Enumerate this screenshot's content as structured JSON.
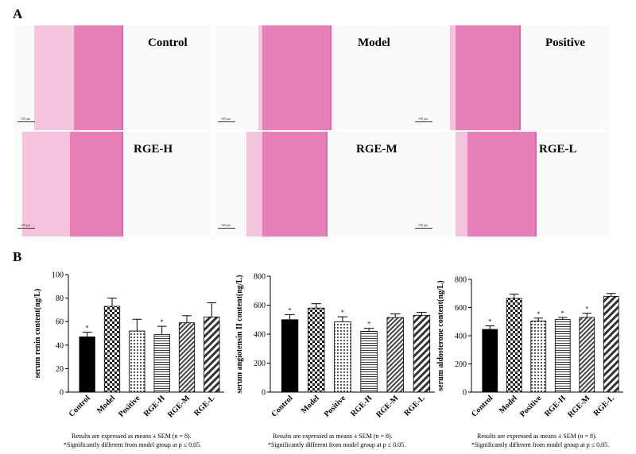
{
  "panel_a": {
    "letter": "A",
    "tiles": [
      {
        "label": "Control",
        "scale": "100 μm"
      },
      {
        "label": "Model",
        "scale": "100 μm"
      },
      {
        "label": "Positive",
        "scale": "100 μm"
      },
      {
        "label": "RGE-H",
        "scale": "100 μm"
      },
      {
        "label": "RGE-M",
        "scale": "100 μm"
      },
      {
        "label": "RGE-L",
        "scale": "100 μm"
      }
    ]
  },
  "panel_b": {
    "letter": "B",
    "footnote_line1": "Results are expressed as means ± SEM (n = 8).",
    "footnote_line2": "*Significantly different from  model group at p ≤ 0.05."
  },
  "colors": {
    "tissue": "#e87fb8",
    "tissue_light": "#f3c4dc",
    "bar_dark": "#000000"
  },
  "chart_data": [
    {
      "type": "bar",
      "title": "",
      "ylabel": "serum renin content(ng/L)",
      "ylim": [
        0,
        100
      ],
      "yticks": [
        0,
        20,
        40,
        60,
        80,
        100
      ],
      "categories": [
        "Control",
        "Model",
        "Positive",
        "RGE-H",
        "RGE-M",
        "RGE-L"
      ],
      "values": [
        47,
        73,
        52,
        49,
        59,
        64
      ],
      "errors": [
        4,
        7,
        10,
        7,
        6,
        12
      ],
      "significant": [
        true,
        false,
        false,
        true,
        false,
        false
      ],
      "patterns": [
        "solid",
        "checker",
        "dots",
        "hlines",
        "diagfine",
        "diagbold"
      ],
      "grid": false
    },
    {
      "type": "bar",
      "title": "",
      "ylabel": "serum angiotensin II content(ng/L)",
      "ylim": [
        0,
        800
      ],
      "yticks": [
        0,
        200,
        400,
        600,
        800
      ],
      "categories": [
        "Control",
        "Model",
        "Positive",
        "RGE-H",
        "RGE-M",
        "RGE-L"
      ],
      "values": [
        500,
        580,
        485,
        420,
        515,
        530
      ],
      "errors": [
        35,
        30,
        35,
        20,
        25,
        20
      ],
      "significant": [
        true,
        false,
        true,
        true,
        false,
        false
      ],
      "patterns": [
        "solid",
        "checker",
        "dots",
        "hlines",
        "diagfine",
        "diagbold"
      ],
      "grid": false
    },
    {
      "type": "bar",
      "title": "",
      "ylabel": "serum aldosterone content(ng/L)",
      "ylim": [
        0,
        800
      ],
      "yticks": [
        0,
        200,
        400,
        600,
        800
      ],
      "categories": [
        "Control",
        "Model",
        "Positive",
        "RGE-H",
        "RGE-M",
        "RGE-L"
      ],
      "values": [
        445,
        665,
        505,
        515,
        530,
        680
      ],
      "errors": [
        25,
        30,
        20,
        15,
        30,
        20
      ],
      "significant": [
        true,
        false,
        true,
        true,
        true,
        false
      ],
      "patterns": [
        "solid",
        "checker",
        "dots",
        "hlines",
        "diagfine",
        "diagbold"
      ],
      "grid": false
    }
  ]
}
